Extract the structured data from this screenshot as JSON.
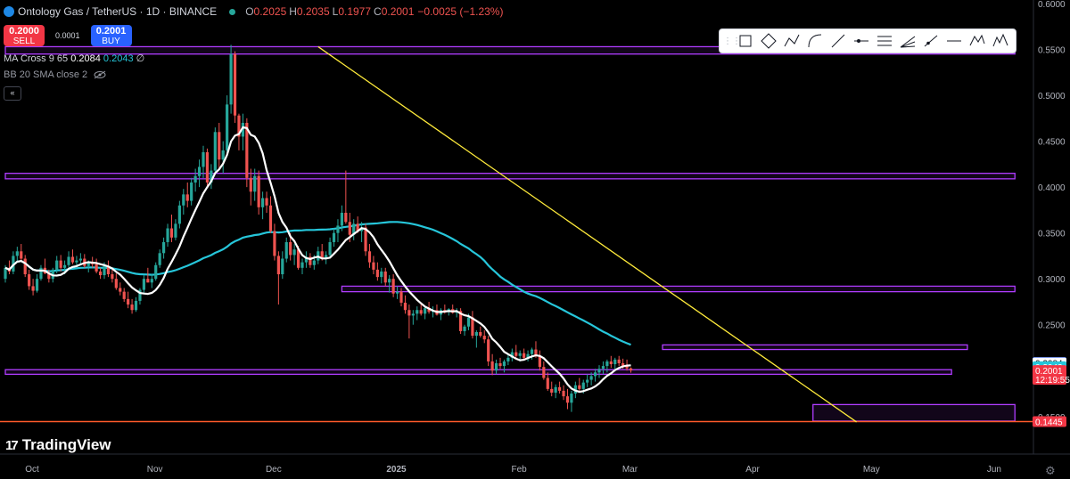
{
  "header": {
    "title": "Ontology Gas / TetherUS · 1D · BINANCE",
    "o_label": "O",
    "o_value": "0.2025",
    "h_label": "H",
    "h_value": "0.2035",
    "l_label": "L",
    "l_value": "0.1977",
    "c_label": "C",
    "c_value": "0.2001",
    "change": "−0.0025 (−1.23%)"
  },
  "trade": {
    "sell_price": "0.2000",
    "sell_label": "SELL",
    "spread": "0.0001",
    "buy_price": "0.2001",
    "buy_label": "BUY"
  },
  "indicators": {
    "ma_label": "MA Cross 9 65",
    "ma_fast": "0.2084",
    "ma_slow": "0.2043",
    "ma_suffix": "∅",
    "bb_label": "BB 20 SMA close 2"
  },
  "collapse_label": "«",
  "toolbar": {
    "tools": [
      "rectangle-icon",
      "rotated-rectangle-icon",
      "path-icon",
      "arc-icon",
      "trend-line-icon",
      "horizontal-ray-icon",
      "parallel-channel-icon",
      "fib-fan-icon",
      "ray-icon",
      "horizontal-line-icon",
      "pattern-icon",
      "elliott-wave-icon"
    ]
  },
  "brand": {
    "name": "TradingView",
    "mark": "17"
  },
  "colors": {
    "up": "#26a69a",
    "down": "#ef5350",
    "ma_fast": "#ffffff",
    "ma_slow": "#26c6da",
    "zone": "#b03cff",
    "trend": "#ffeb3b",
    "support": "#ff5b2b"
  },
  "chart_data": {
    "type": "candlestick",
    "symbol": "Ontology Gas / TetherUS",
    "interval": "1D",
    "exchange": "BINANCE",
    "y_ticks": [
      "0.6000",
      "0.5500",
      "0.5000",
      "0.4500",
      "0.4000",
      "0.3500",
      "0.3000",
      "0.2500",
      "0.2000",
      "0.1500"
    ],
    "ylim": [
      0.143,
      0.6
    ],
    "x_ticks": [
      {
        "label": "Oct",
        "day": 0
      },
      {
        "label": "Nov",
        "day": 31
      },
      {
        "label": "Dec",
        "day": 61
      },
      {
        "label": "2025",
        "day": 92
      },
      {
        "label": "Feb",
        "day": 123
      },
      {
        "label": "Mar",
        "day": 151
      },
      {
        "label": "Apr",
        "day": 182
      },
      {
        "label": "May",
        "day": 212
      },
      {
        "label": "Jun",
        "day": 243
      }
    ],
    "price_labels": [
      {
        "text": "0.2089",
        "value": 0.2089,
        "color": "#2962ff"
      },
      {
        "text": "0.2084",
        "value": 0.2084,
        "color": "#ffffff"
      },
      {
        "text": "0.2043",
        "value": 0.2043,
        "color": "#26c6da"
      },
      {
        "text": "0.2001",
        "value": 0.2001,
        "color": "#f23645",
        "sub": "12:19:55"
      },
      {
        "text": "0.1445",
        "value": 0.1445,
        "color": "#f23645"
      }
    ],
    "zones": [
      {
        "from_day": 0,
        "to_day": 255,
        "low": 0.545,
        "high": 0.553
      },
      {
        "from_day": 0,
        "to_day": 255,
        "low": 0.409,
        "high": 0.415
      },
      {
        "from_day": 85,
        "to_day": 255,
        "low": 0.286,
        "high": 0.292
      },
      {
        "from_day": 166,
        "to_day": 243,
        "low": 0.223,
        "high": 0.228
      },
      {
        "from_day": 0,
        "to_day": 239,
        "low": 0.196,
        "high": 0.201
      },
      {
        "from_day": 204,
        "to_day": 255,
        "low": 0.145,
        "high": 0.163
      }
    ],
    "support_line": 0.1445,
    "trendline": {
      "from_day": 79,
      "from_value": 0.553,
      "to_day": 215,
      "to_value": 0.144
    },
    "candles": [
      [
        0.3,
        0.315,
        0.296,
        0.312
      ],
      [
        0.312,
        0.32,
        0.305,
        0.308
      ],
      [
        0.308,
        0.33,
        0.305,
        0.325
      ],
      [
        0.325,
        0.335,
        0.318,
        0.33
      ],
      [
        0.33,
        0.338,
        0.32,
        0.322
      ],
      [
        0.322,
        0.326,
        0.302,
        0.305
      ],
      [
        0.305,
        0.31,
        0.288,
        0.292
      ],
      [
        0.292,
        0.3,
        0.282,
        0.287
      ],
      [
        0.287,
        0.305,
        0.285,
        0.3
      ],
      [
        0.3,
        0.315,
        0.298,
        0.312
      ],
      [
        0.312,
        0.322,
        0.305,
        0.306
      ],
      [
        0.306,
        0.31,
        0.296,
        0.3
      ],
      [
        0.3,
        0.312,
        0.296,
        0.31
      ],
      [
        0.31,
        0.325,
        0.306,
        0.32
      ],
      [
        0.32,
        0.326,
        0.308,
        0.312
      ],
      [
        0.312,
        0.32,
        0.305,
        0.315
      ],
      [
        0.315,
        0.33,
        0.312,
        0.324
      ],
      [
        0.324,
        0.332,
        0.316,
        0.318
      ],
      [
        0.318,
        0.325,
        0.312,
        0.32
      ],
      [
        0.32,
        0.328,
        0.316,
        0.322
      ],
      [
        0.322,
        0.327,
        0.312,
        0.314
      ],
      [
        0.314,
        0.32,
        0.307,
        0.318
      ],
      [
        0.318,
        0.324,
        0.312,
        0.316
      ],
      [
        0.316,
        0.322,
        0.306,
        0.308
      ],
      [
        0.308,
        0.312,
        0.3,
        0.304
      ],
      [
        0.304,
        0.318,
        0.3,
        0.314
      ],
      [
        0.314,
        0.32,
        0.302,
        0.305
      ],
      [
        0.305,
        0.31,
        0.296,
        0.3
      ],
      [
        0.3,
        0.306,
        0.288,
        0.29
      ],
      [
        0.29,
        0.296,
        0.282,
        0.286
      ],
      [
        0.286,
        0.29,
        0.275,
        0.278
      ],
      [
        0.278,
        0.286,
        0.268,
        0.272
      ],
      [
        0.272,
        0.278,
        0.262,
        0.266
      ],
      [
        0.266,
        0.28,
        0.264,
        0.276
      ],
      [
        0.276,
        0.29,
        0.272,
        0.288
      ],
      [
        0.288,
        0.304,
        0.285,
        0.3
      ],
      [
        0.3,
        0.312,
        0.296,
        0.296
      ],
      [
        0.296,
        0.305,
        0.29,
        0.3
      ],
      [
        0.3,
        0.318,
        0.298,
        0.315
      ],
      [
        0.315,
        0.332,
        0.312,
        0.328
      ],
      [
        0.328,
        0.345,
        0.322,
        0.34
      ],
      [
        0.34,
        0.36,
        0.335,
        0.355
      ],
      [
        0.355,
        0.37,
        0.34,
        0.345
      ],
      [
        0.345,
        0.365,
        0.342,
        0.36
      ],
      [
        0.36,
        0.385,
        0.355,
        0.38
      ],
      [
        0.38,
        0.398,
        0.37,
        0.392
      ],
      [
        0.392,
        0.405,
        0.378,
        0.385
      ],
      [
        0.385,
        0.41,
        0.38,
        0.405
      ],
      [
        0.405,
        0.42,
        0.395,
        0.412
      ],
      [
        0.412,
        0.43,
        0.4,
        0.422
      ],
      [
        0.422,
        0.445,
        0.41,
        0.438
      ],
      [
        0.438,
        0.442,
        0.4,
        0.405
      ],
      [
        0.405,
        0.425,
        0.398,
        0.418
      ],
      [
        0.418,
        0.465,
        0.415,
        0.46
      ],
      [
        0.46,
        0.47,
        0.42,
        0.43
      ],
      [
        0.43,
        0.45,
        0.415,
        0.44
      ],
      [
        0.44,
        0.5,
        0.436,
        0.49
      ],
      [
        0.49,
        0.555,
        0.48,
        0.545
      ],
      [
        0.545,
        0.548,
        0.47,
        0.478
      ],
      [
        0.478,
        0.48,
        0.44,
        0.455
      ],
      [
        0.455,
        0.48,
        0.44,
        0.47
      ],
      [
        0.47,
        0.475,
        0.4,
        0.41
      ],
      [
        0.41,
        0.42,
        0.38,
        0.395
      ],
      [
        0.395,
        0.42,
        0.385,
        0.412
      ],
      [
        0.412,
        0.418,
        0.37,
        0.378
      ],
      [
        0.378,
        0.395,
        0.365,
        0.388
      ],
      [
        0.388,
        0.395,
        0.372,
        0.38
      ],
      [
        0.38,
        0.39,
        0.35,
        0.352
      ],
      [
        0.352,
        0.36,
        0.32,
        0.325
      ],
      [
        0.325,
        0.33,
        0.272,
        0.305
      ],
      [
        0.305,
        0.33,
        0.3,
        0.322
      ],
      [
        0.322,
        0.345,
        0.318,
        0.34
      ],
      [
        0.34,
        0.35,
        0.32,
        0.326
      ],
      [
        0.326,
        0.338,
        0.315,
        0.332
      ],
      [
        0.332,
        0.336,
        0.31,
        0.312
      ],
      [
        0.312,
        0.322,
        0.305,
        0.318
      ],
      [
        0.318,
        0.33,
        0.312,
        0.324
      ],
      [
        0.324,
        0.328,
        0.312,
        0.315
      ],
      [
        0.315,
        0.326,
        0.31,
        0.32
      ],
      [
        0.32,
        0.335,
        0.316,
        0.33
      ],
      [
        0.33,
        0.338,
        0.32,
        0.323
      ],
      [
        0.323,
        0.33,
        0.316,
        0.326
      ],
      [
        0.326,
        0.345,
        0.322,
        0.34
      ],
      [
        0.34,
        0.355,
        0.335,
        0.35
      ],
      [
        0.35,
        0.365,
        0.34,
        0.358
      ],
      [
        0.358,
        0.38,
        0.352,
        0.372
      ],
      [
        0.372,
        0.418,
        0.36,
        0.362
      ],
      [
        0.362,
        0.372,
        0.34,
        0.348
      ],
      [
        0.348,
        0.365,
        0.342,
        0.36
      ],
      [
        0.36,
        0.368,
        0.35,
        0.352
      ],
      [
        0.352,
        0.362,
        0.34,
        0.356
      ],
      [
        0.356,
        0.36,
        0.325,
        0.33
      ],
      [
        0.33,
        0.338,
        0.312,
        0.318
      ],
      [
        0.318,
        0.325,
        0.305,
        0.31
      ],
      [
        0.31,
        0.318,
        0.298,
        0.302
      ],
      [
        0.302,
        0.312,
        0.295,
        0.308
      ],
      [
        0.308,
        0.312,
        0.292,
        0.296
      ],
      [
        0.296,
        0.304,
        0.285,
        0.3
      ],
      [
        0.3,
        0.305,
        0.28,
        0.284
      ],
      [
        0.284,
        0.292,
        0.278,
        0.286
      ],
      [
        0.286,
        0.29,
        0.27,
        0.274
      ],
      [
        0.274,
        0.282,
        0.262,
        0.266
      ],
      [
        0.266,
        0.272,
        0.235,
        0.26
      ],
      [
        0.26,
        0.266,
        0.25,
        0.262
      ],
      [
        0.262,
        0.27,
        0.255,
        0.266
      ],
      [
        0.266,
        0.272,
        0.26,
        0.262
      ],
      [
        0.262,
        0.27,
        0.256,
        0.268
      ],
      [
        0.268,
        0.275,
        0.262,
        0.264
      ],
      [
        0.264,
        0.27,
        0.258,
        0.266
      ],
      [
        0.266,
        0.272,
        0.26,
        0.261
      ],
      [
        0.261,
        0.268,
        0.255,
        0.266
      ],
      [
        0.266,
        0.272,
        0.262,
        0.264
      ],
      [
        0.264,
        0.268,
        0.26,
        0.267
      ],
      [
        0.267,
        0.272,
        0.262,
        0.263
      ],
      [
        0.263,
        0.268,
        0.258,
        0.265
      ],
      [
        0.265,
        0.268,
        0.24,
        0.243
      ],
      [
        0.243,
        0.25,
        0.238,
        0.248
      ],
      [
        0.248,
        0.262,
        0.244,
        0.258
      ],
      [
        0.258,
        0.265,
        0.235,
        0.238
      ],
      [
        0.238,
        0.244,
        0.225,
        0.242
      ],
      [
        0.242,
        0.248,
        0.236,
        0.238
      ],
      [
        0.238,
        0.244,
        0.23,
        0.234
      ],
      [
        0.234,
        0.238,
        0.205,
        0.21
      ],
      [
        0.21,
        0.218,
        0.195,
        0.2
      ],
      [
        0.2,
        0.212,
        0.196,
        0.208
      ],
      [
        0.208,
        0.214,
        0.202,
        0.205
      ],
      [
        0.205,
        0.212,
        0.198,
        0.21
      ],
      [
        0.21,
        0.218,
        0.206,
        0.214
      ],
      [
        0.214,
        0.224,
        0.21,
        0.22
      ],
      [
        0.22,
        0.228,
        0.214,
        0.216
      ],
      [
        0.216,
        0.222,
        0.21,
        0.219
      ],
      [
        0.219,
        0.224,
        0.212,
        0.214
      ],
      [
        0.214,
        0.222,
        0.21,
        0.218
      ],
      [
        0.218,
        0.225,
        0.212,
        0.223
      ],
      [
        0.223,
        0.232,
        0.214,
        0.216
      ],
      [
        0.216,
        0.222,
        0.2,
        0.204
      ],
      [
        0.204,
        0.21,
        0.19,
        0.192
      ],
      [
        0.192,
        0.198,
        0.178,
        0.18
      ],
      [
        0.18,
        0.188,
        0.172,
        0.176
      ],
      [
        0.176,
        0.185,
        0.17,
        0.182
      ],
      [
        0.182,
        0.188,
        0.175,
        0.178
      ],
      [
        0.178,
        0.184,
        0.168,
        0.172
      ],
      [
        0.172,
        0.18,
        0.158,
        0.165
      ],
      [
        0.165,
        0.178,
        0.155,
        0.175
      ],
      [
        0.175,
        0.188,
        0.17,
        0.184
      ],
      [
        0.184,
        0.192,
        0.176,
        0.18
      ],
      [
        0.18,
        0.19,
        0.175,
        0.187
      ],
      [
        0.187,
        0.196,
        0.182,
        0.19
      ],
      [
        0.19,
        0.198,
        0.184,
        0.194
      ],
      [
        0.194,
        0.202,
        0.188,
        0.198
      ],
      [
        0.198,
        0.206,
        0.192,
        0.202
      ],
      [
        0.202,
        0.21,
        0.196,
        0.205
      ],
      [
        0.205,
        0.212,
        0.198,
        0.21
      ],
      [
        0.21,
        0.216,
        0.203,
        0.207
      ],
      [
        0.207,
        0.214,
        0.202,
        0.212
      ],
      [
        0.212,
        0.216,
        0.205,
        0.208
      ],
      [
        0.208,
        0.213,
        0.202,
        0.205
      ],
      [
        0.205,
        0.212,
        0.2,
        0.2025
      ],
      [
        0.2025,
        0.2035,
        0.1977,
        0.2001
      ]
    ],
    "ma_fast": {
      "name": "MA 9",
      "period": 9
    },
    "ma_slow": {
      "name": "MA 65",
      "period": 65
    }
  }
}
